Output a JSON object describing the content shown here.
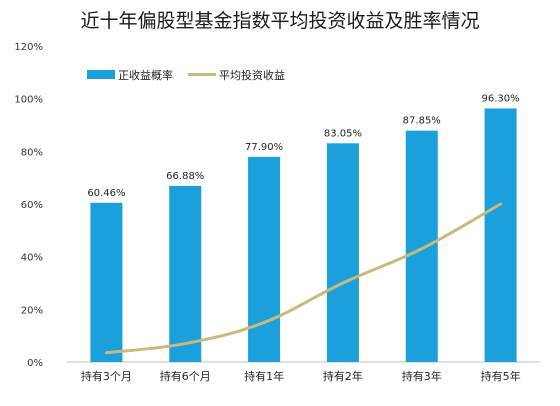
{
  "chart_data": {
    "type": "bar",
    "title": "近十年偏股型基金指数平均投资收益及胜率情况",
    "categories": [
      "持有3个月",
      "持有6个月",
      "持有1年",
      "持有2年",
      "持有3年",
      "持有5年"
    ],
    "series": [
      {
        "name": "正收益概率",
        "type": "bar",
        "values": [
          60.46,
          66.88,
          77.9,
          83.05,
          87.85,
          96.3
        ],
        "labels": [
          "60.46%",
          "66.88%",
          "77.90%",
          "83.05%",
          "87.85%",
          "96.30%"
        ],
        "color": "#1ca0dc"
      },
      {
        "name": "平均投资收益",
        "type": "line",
        "values": [
          3.5,
          7,
          15,
          30,
          43,
          60
        ],
        "color": "#c9b97a"
      }
    ],
    "ylim": [
      0,
      120
    ],
    "yticks": [
      0,
      20,
      40,
      60,
      80,
      100,
      120
    ],
    "ytick_labels": [
      "0%",
      "20%",
      "40%",
      "60%",
      "80%",
      "100%",
      "120%"
    ],
    "grid": false,
    "legend_position": "top-left"
  }
}
